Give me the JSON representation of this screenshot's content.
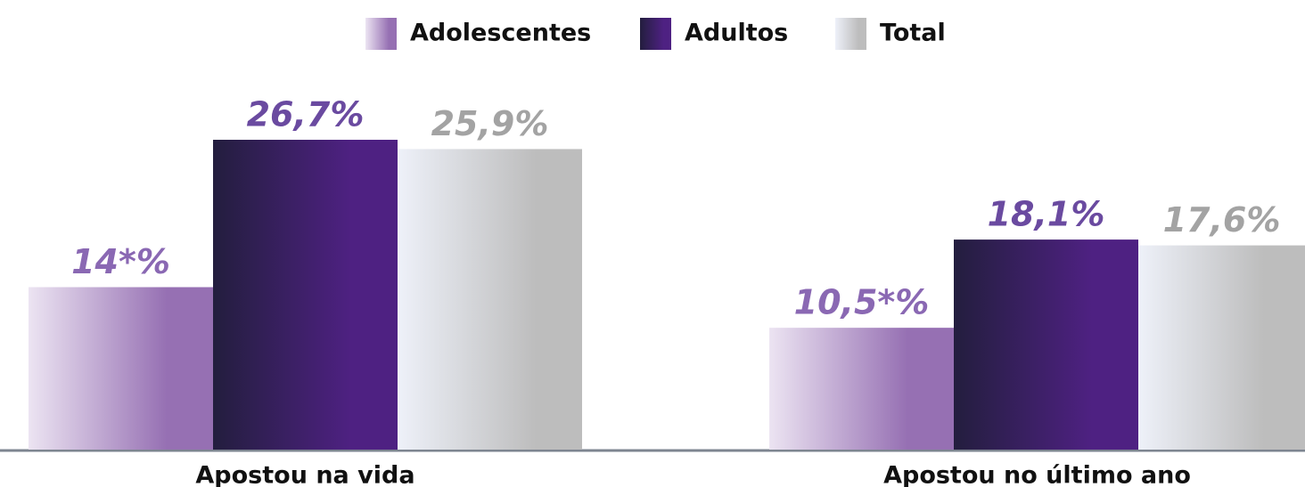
{
  "chart_data": {
    "type": "bar",
    "categories": [
      "Apostou na vida",
      "Apostou no último ano"
    ],
    "series": [
      {
        "name": "Adolescentes",
        "color": [
          "#ece4f2",
          "#9670b3"
        ],
        "label_color": "#8a68b3",
        "values": [
          14,
          10.5
        ],
        "value_labels": [
          "14*%",
          "10,5*%"
        ]
      },
      {
        "name": "Adultos",
        "color": [
          "#231e3e",
          "#4e2182"
        ],
        "label_color": "#6a4aa0",
        "values": [
          26.7,
          18.1
        ],
        "value_labels": [
          "26,7%",
          "18,1%"
        ]
      },
      {
        "name": "Total",
        "color": [
          "#eef1f9",
          "#bdbdbd"
        ],
        "label_color": "#a3a3a3",
        "values": [
          25.9,
          17.6
        ],
        "value_labels": [
          "25,9%",
          "17,6%"
        ]
      }
    ]
  }
}
